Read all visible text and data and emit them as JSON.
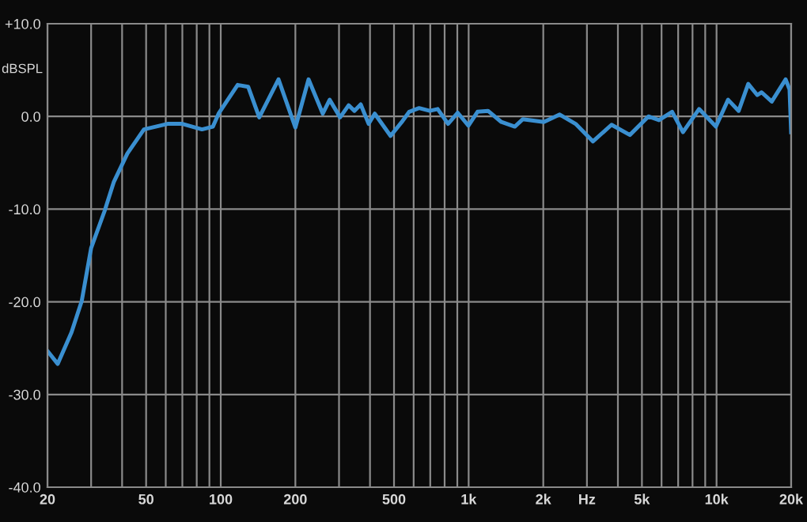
{
  "chart_data": {
    "type": "line",
    "ylabel": "dBSPL",
    "log": "x",
    "grid": true,
    "marker": "none",
    "line_style": "solid",
    "xlim": [
      20,
      20000
    ],
    "ylim": [
      -40,
      10
    ],
    "xticks": [
      20,
      {
        "value": 30,
        "label": null
      },
      {
        "value": 40,
        "label": null
      },
      50,
      {
        "value": 60,
        "label": null
      },
      {
        "value": 70,
        "label": null
      },
      {
        "value": 80,
        "label": null
      },
      {
        "value": 90,
        "label": null
      },
      100,
      200,
      {
        "value": 300,
        "label": null
      },
      {
        "value": 400,
        "label": null
      },
      500,
      {
        "value": 600,
        "label": null
      },
      {
        "value": 700,
        "label": null
      },
      {
        "value": 800,
        "label": null
      },
      {
        "value": 900,
        "label": null
      },
      {
        "value": 1000,
        "label": "1k"
      },
      {
        "value": 2000,
        "label": "2k"
      },
      {
        "value": 3000,
        "label": "Hz"
      },
      {
        "value": 4000,
        "label": null
      },
      {
        "value": 5000,
        "label": "5k"
      },
      {
        "value": 6000,
        "label": null
      },
      {
        "value": 7000,
        "label": null
      },
      {
        "value": 8000,
        "label": null
      },
      {
        "value": 9000,
        "label": null
      },
      {
        "value": 10000,
        "label": "10k"
      },
      {
        "value": 20000,
        "label": "20k"
      }
    ],
    "yticks": [
      {
        "value": 10,
        "label": "+10.0"
      },
      {
        "value": 0,
        "label": "0.0"
      },
      {
        "value": -10,
        "label": "-10.0"
      },
      {
        "value": -20,
        "label": "-20.0"
      },
      {
        "value": -30,
        "label": "-30.0"
      },
      {
        "value": -40,
        "label": "-40.0"
      }
    ],
    "x": [
      20,
      22,
      25,
      27.5,
      30,
      34,
      37,
      42,
      49,
      61,
      70,
      84,
      93,
      98,
      117,
      129,
      143,
      171,
      200,
      226,
      258,
      275,
      303,
      328,
      346,
      367,
      395,
      418,
      484,
      541,
      576,
      631,
      697,
      750,
      826,
      903,
      998,
      1086,
      1197,
      1355,
      1535,
      1655,
      2010,
      2330,
      2700,
      3170,
      3770,
      4470,
      5310,
      5860,
      6620,
      7320,
      8500,
      9940,
      11130,
      12280,
      13420,
      14600,
      15200,
      16700,
      19000,
      19700,
      20000
    ],
    "series": [
      {
        "color": "#3a8fd0",
        "values": [
          -25.3,
          -26.7,
          -23.3,
          -19.9,
          -14.2,
          -10.2,
          -7.1,
          -4.0,
          -1.4,
          -0.8,
          -0.8,
          -1.4,
          -1.1,
          0.3,
          3.4,
          3.2,
          -0.1,
          4.0,
          -1.2,
          4.0,
          0.3,
          1.8,
          -0.1,
          1.2,
          0.6,
          1.3,
          -0.8,
          0.3,
          -2.1,
          -0.5,
          0.5,
          0.9,
          0.6,
          0.8,
          -0.8,
          0.4,
          -1.0,
          0.5,
          0.6,
          -0.6,
          -1.1,
          -0.3,
          -0.6,
          0.2,
          -0.8,
          -2.7,
          -0.9,
          -2.0,
          0.0,
          -0.4,
          0.5,
          -1.7,
          0.8,
          -1.1,
          1.8,
          0.6,
          3.5,
          2.3,
          2.6,
          1.6,
          4.0,
          2.9,
          -1.7
        ]
      }
    ]
  }
}
